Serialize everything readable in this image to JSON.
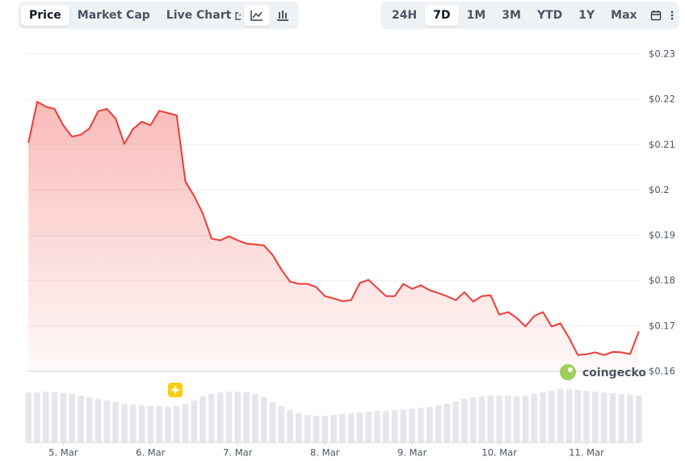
{
  "toolbar": {
    "views": [
      "Price",
      "Market Cap",
      "Live Chart"
    ],
    "ranges": [
      "24H",
      "7D",
      "1M",
      "3M",
      "YTD",
      "1Y",
      "Max"
    ]
  },
  "chart_data": {
    "type": "line",
    "x": [
      4.6,
      4.7,
      4.8,
      4.9,
      5.0,
      5.1,
      5.2,
      5.3,
      5.4,
      5.5,
      5.6,
      5.7,
      5.8,
      5.9,
      6.0,
      6.1,
      6.2,
      6.3,
      6.4,
      6.5,
      6.6,
      6.7,
      6.8,
      6.9,
      7.0,
      7.1,
      7.2,
      7.3,
      7.4,
      7.5,
      7.6,
      7.7,
      7.8,
      7.9,
      8.0,
      8.1,
      8.2,
      8.3,
      8.4,
      8.5,
      8.6,
      8.7,
      8.8,
      8.9,
      9.0,
      9.1,
      9.2,
      9.3,
      9.4,
      9.5,
      9.6,
      9.7,
      9.8,
      9.9,
      10.0,
      10.1,
      10.2,
      10.3,
      10.4,
      10.5,
      10.6,
      10.7,
      10.8,
      10.9,
      11.0,
      11.1,
      11.2,
      11.3,
      11.4,
      11.5,
      11.6
    ],
    "series": [
      {
        "color": "#ef3b36",
        "values": [
          0.2104,
          0.2195,
          0.2184,
          0.2179,
          0.2143,
          0.2118,
          0.2122,
          0.2136,
          0.2174,
          0.2179,
          0.2158,
          0.2102,
          0.2135,
          0.2151,
          0.2143,
          0.2175,
          0.217,
          0.2165,
          0.2019,
          0.1987,
          0.1948,
          0.1893,
          0.1889,
          0.1898,
          0.1889,
          0.1882,
          0.188,
          0.1878,
          0.1857,
          0.1825,
          0.1798,
          0.1793,
          0.1793,
          0.1786,
          0.1766,
          0.1761,
          0.1755,
          0.1757,
          0.1795,
          0.1802,
          0.1784,
          0.1766,
          0.1766,
          0.1793,
          0.1782,
          0.179,
          0.1779,
          0.1773,
          0.1766,
          0.1757,
          0.1775,
          0.1754,
          0.1766,
          0.1768,
          0.1725,
          0.1731,
          0.1718,
          0.1699,
          0.1722,
          0.1731,
          0.1699,
          0.1706,
          0.1674,
          0.1636,
          0.1638,
          0.1642,
          0.1636,
          0.1643,
          0.1642,
          0.1638,
          0.1688
        ]
      }
    ],
    "volume": {
      "color": "#e5e7eb",
      "values": [
        62,
        62,
        63,
        62,
        61,
        60,
        58,
        56,
        54,
        52,
        50,
        48,
        47,
        46,
        45,
        45,
        44,
        45,
        48,
        52,
        57,
        60,
        62,
        63,
        63,
        62,
        60,
        56,
        50,
        45,
        40,
        36,
        34,
        33,
        33,
        34,
        35,
        36,
        37,
        38,
        39,
        39,
        40,
        41,
        42,
        43,
        44,
        46,
        48,
        51,
        54,
        56,
        57,
        58,
        58,
        58,
        57,
        58,
        60,
        62,
        64,
        66,
        66,
        65,
        64,
        63,
        62,
        61,
        60,
        59,
        58
      ]
    },
    "xlim": [
      4.58,
      11.62
    ],
    "xticks": [
      {
        "value": 5,
        "label": "5. Mar"
      },
      {
        "value": 6,
        "label": "6. Mar"
      },
      {
        "value": 7,
        "label": "7. Mar"
      },
      {
        "value": 8,
        "label": "8. Mar"
      },
      {
        "value": 9,
        "label": "9. Mar"
      },
      {
        "value": 10,
        "label": "10. Mar"
      },
      {
        "value": 11,
        "label": "11. Mar"
      }
    ],
    "ylim": [
      0.16,
      0.23
    ],
    "yticks": [
      {
        "value": 0.16,
        "label": "$0.16"
      },
      {
        "value": 0.17,
        "label": "$0.17"
      },
      {
        "value": 0.18,
        "label": "$0.18"
      },
      {
        "value": 0.19,
        "label": "$0.19"
      },
      {
        "value": 0.2,
        "label": "$0.2"
      },
      {
        "value": 0.21,
        "label": "$0.21"
      },
      {
        "value": 0.22,
        "label": "$0.22"
      },
      {
        "value": 0.23,
        "label": "$0.23"
      }
    ],
    "grid": true,
    "watermark": "coingecko"
  }
}
